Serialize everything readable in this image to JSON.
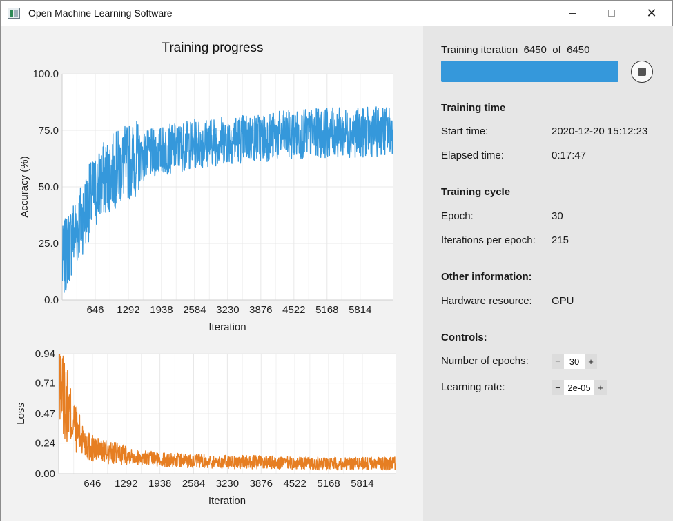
{
  "window": {
    "title": "Open Machine Learning Software",
    "controls": {
      "minimize": "minimize",
      "maximize": "maximize",
      "close": "close"
    }
  },
  "progress": {
    "label_prefix": "Training iteration",
    "current": "6450",
    "label_of": "of",
    "total": "6450",
    "fraction": 1.0
  },
  "training_time": {
    "heading": "Training time",
    "start_label": "Start time:",
    "start_value": "2020-12-20 15:12:23",
    "elapsed_label": "Elapsed time:",
    "elapsed_value": "0:17:47"
  },
  "training_cycle": {
    "heading": "Training cycle",
    "epoch_label": "Epoch:",
    "epoch_value": "30",
    "ipe_label": "Iterations per epoch:",
    "ipe_value": "215"
  },
  "other": {
    "heading": "Other information:",
    "hw_label": "Hardware resource:",
    "hw_value": "GPU"
  },
  "controls": {
    "heading": "Controls:",
    "epochs_label": "Number of epochs:",
    "epochs_value": "30",
    "lr_label": "Learning rate:",
    "lr_value": "2e-05",
    "minus": "−",
    "plus": "+"
  },
  "colors": {
    "accuracy_line": "#3598db",
    "loss_line": "#e67e22",
    "progress_fill": "#3598db"
  },
  "chart_data": [
    {
      "type": "line",
      "title": "Training progress",
      "xlabel": "Iteration",
      "ylabel": "Accuracy (%)",
      "xlim": [
        0,
        6450
      ],
      "ylim": [
        0,
        100
      ],
      "xticks": [
        "646",
        "1292",
        "1938",
        "2584",
        "3230",
        "3876",
        "4522",
        "5168",
        "5814"
      ],
      "yticks": [
        "0.0",
        "25.0",
        "50.0",
        "75.0",
        "100.0"
      ],
      "grid": true,
      "series": [
        {
          "color": "#3598db",
          "x": [
            0,
            100,
            200,
            300,
            400,
            500,
            646,
            800,
            1000,
            1292,
            1500,
            1938,
            2584,
            3230,
            3876,
            4522,
            5168,
            5814,
            6450
          ],
          "y": [
            15,
            22,
            28,
            32,
            37,
            42,
            48,
            53,
            57,
            61,
            63,
            66,
            69,
            71,
            72,
            73,
            74,
            74,
            75
          ]
        }
      ]
    },
    {
      "type": "line",
      "title": "",
      "xlabel": "Iteration",
      "ylabel": "Loss",
      "xlim": [
        0,
        6450
      ],
      "ylim": [
        0,
        0.94
      ],
      "xticks": [
        "646",
        "1292",
        "1938",
        "2584",
        "3230",
        "3876",
        "4522",
        "5168",
        "5814"
      ],
      "yticks": [
        "0.00",
        "0.24",
        "0.47",
        "0.71",
        "0.94"
      ],
      "grid": true,
      "series": [
        {
          "color": "#e67e22",
          "x": [
            0,
            100,
            200,
            300,
            400,
            500,
            646,
            800,
            1000,
            1292,
            1500,
            1938,
            2584,
            3230,
            3876,
            4522,
            5168,
            5814,
            6450
          ],
          "y": [
            0.8,
            0.62,
            0.48,
            0.38,
            0.3,
            0.25,
            0.2,
            0.18,
            0.16,
            0.15,
            0.13,
            0.11,
            0.1,
            0.09,
            0.09,
            0.08,
            0.08,
            0.08,
            0.08
          ]
        }
      ]
    }
  ]
}
